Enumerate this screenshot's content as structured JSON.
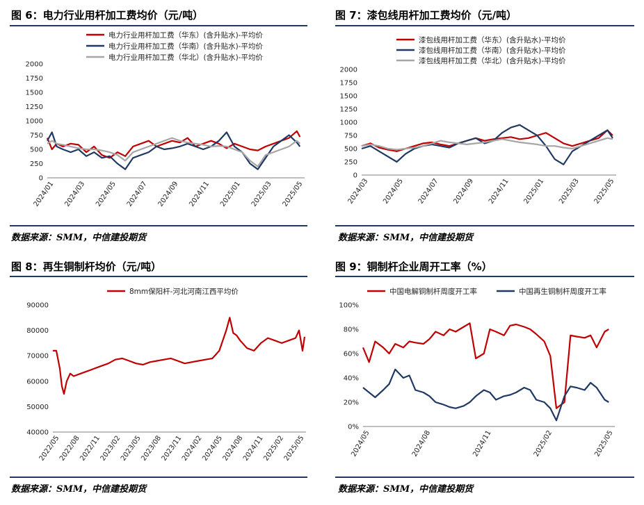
{
  "colors": {
    "red": "#c00000",
    "navy": "#1f3864",
    "gray": "#a6a6a6",
    "rule": "#1f3864"
  },
  "panels": [
    {
      "title": "图 6：电力行业用杆加工费均价（元/吨）",
      "source": "数据来源：SMM，中信建投期货",
      "chart_data": {
        "type": "line",
        "ylim": [
          0,
          2000
        ],
        "yticks": [
          "0",
          "250",
          "500",
          "750",
          "1000",
          "1250",
          "1500",
          "1750",
          "2000"
        ],
        "xlim": [
          0,
          16.5
        ],
        "xticks": [
          "2024/01",
          "2024/03",
          "2024/05",
          "2024/07",
          "2024/09",
          "2024/11",
          "2025/01",
          "2025/03",
          "2025/05"
        ],
        "legend_position": "top",
        "series": [
          {
            "name": "电力行业用杆加工费（华东）(含升贴水)-平均价",
            "color": "red",
            "x": [
              0,
              0.3,
              0.6,
              1,
              1.5,
              2,
              2.5,
              3,
              3.5,
              4,
              4.5,
              5,
              5.5,
              6,
              6.5,
              7,
              7.5,
              8,
              8.5,
              9,
              9.5,
              10,
              10.5,
              11,
              11.5,
              12,
              12.5,
              13,
              13.5,
              14,
              14.5,
              15,
              15.5,
              16,
              16.2
            ],
            "values": [
              700,
              500,
              600,
              550,
              600,
              580,
              450,
              550,
              400,
              350,
              450,
              380,
              550,
              600,
              650,
              550,
              600,
              650,
              620,
              700,
              550,
              600,
              650,
              600,
              520,
              600,
              550,
              500,
              480,
              550,
              600,
              650,
              700,
              820,
              720
            ]
          },
          {
            "name": "电力行业用杆加工费（华南）(含升贴水)-平均价",
            "color": "navy",
            "x": [
              0,
              0.3,
              0.6,
              1,
              1.5,
              2,
              2.5,
              3,
              3.5,
              4,
              4.5,
              5,
              5.5,
              6,
              6.5,
              7,
              7.5,
              8,
              8.5,
              9,
              9.5,
              10,
              10.5,
              11,
              11.5,
              12,
              12.5,
              13,
              13.5,
              14,
              14.5,
              15,
              15.5,
              16,
              16.2
            ],
            "values": [
              650,
              800,
              550,
              500,
              450,
              500,
              380,
              450,
              350,
              380,
              250,
              150,
              350,
              400,
              450,
              550,
              500,
              520,
              550,
              600,
              550,
              500,
              550,
              650,
              800,
              550,
              450,
              250,
              150,
              350,
              550,
              650,
              750,
              620,
              550
            ]
          },
          {
            "name": "电力行业用杆加工费（华北）(含升贴水)-平均价",
            "color": "gray",
            "x": [
              0,
              0.3,
              0.6,
              1,
              1.5,
              2,
              2.5,
              3,
              3.5,
              4,
              4.5,
              5,
              5.5,
              6,
              6.5,
              7,
              7.5,
              8,
              8.5,
              9,
              9.5,
              10,
              10.5,
              11,
              11.5,
              12,
              12.5,
              13,
              13.5,
              14,
              14.5,
              15,
              15.5,
              16,
              16.2
            ],
            "values": [
              600,
              650,
              600,
              580,
              550,
              520,
              500,
              500,
              480,
              450,
              400,
              300,
              450,
              500,
              550,
              600,
              650,
              700,
              650,
              620,
              600,
              580,
              550,
              560,
              550,
              500,
              450,
              300,
              200,
              400,
              450,
              500,
              550,
              650,
              600
            ]
          }
        ]
      }
    },
    {
      "title": "图 7：漆包线用杆加工费均价（元/吨）",
      "source": "数据来源：SMM，中信建投期货",
      "chart_data": {
        "type": "line",
        "ylim": [
          0,
          2000
        ],
        "yticks": [
          "0",
          "250",
          "500",
          "750",
          "1000",
          "1250",
          "1500",
          "1750",
          "2000"
        ],
        "xlim": [
          0,
          14.5
        ],
        "xticks": [
          "2024/03",
          "2024/05",
          "2024/07",
          "2024/09",
          "2024/11",
          "2025/01",
          "2025/03",
          "2025/05"
        ],
        "legend_position": "top",
        "series": [
          {
            "name": "漆包线用杆加工费（华东）(含升贴水)-平均价",
            "color": "red",
            "x": [
              0,
              0.5,
              1,
              1.5,
              2,
              2.5,
              3,
              3.5,
              4,
              4.5,
              5,
              5.5,
              6,
              6.5,
              7,
              7.5,
              8,
              8.5,
              9,
              9.5,
              10,
              10.5,
              11,
              11.5,
              12,
              12.5,
              13,
              13.5,
              14,
              14.3
            ],
            "values": [
              550,
              600,
              520,
              480,
              450,
              500,
              550,
              600,
              620,
              580,
              550,
              600,
              650,
              700,
              650,
              680,
              700,
              720,
              680,
              700,
              750,
              800,
              700,
              600,
              550,
              600,
              650,
              700,
              850,
              750
            ]
          },
          {
            "name": "漆包线用杆加工费（华南）(含升贴水)-平均价",
            "color": "navy",
            "x": [
              0,
              0.5,
              1,
              1.5,
              2,
              2.5,
              3,
              3.5,
              4,
              4.5,
              5,
              5.5,
              6,
              6.5,
              7,
              7.5,
              8,
              8.5,
              9,
              9.5,
              10,
              10.5,
              11,
              11.5,
              12,
              12.5,
              13,
              13.5,
              14,
              14.3
            ],
            "values": [
              500,
              550,
              450,
              350,
              250,
              400,
              500,
              550,
              580,
              550,
              520,
              600,
              650,
              700,
              600,
              650,
              800,
              900,
              950,
              850,
              750,
              550,
              300,
              200,
              450,
              550,
              650,
              750,
              850,
              700
            ]
          },
          {
            "name": "漆包线用杆加工费（华北）(含升贴水)-平均价",
            "color": "gray",
            "x": [
              0,
              0.5,
              1,
              1.5,
              2,
              2.5,
              3,
              3.5,
              4,
              4.5,
              5,
              5.5,
              6,
              6.5,
              7,
              7.5,
              8,
              8.5,
              9,
              9.5,
              10,
              10.5,
              11,
              11.5,
              12,
              12.5,
              13,
              13.5,
              14,
              14.3
            ],
            "values": [
              550,
              580,
              550,
              500,
              480,
              500,
              520,
              550,
              600,
              650,
              620,
              600,
              580,
              600,
              620,
              650,
              680,
              650,
              620,
              600,
              580,
              550,
              550,
              520,
              500,
              550,
              600,
              650,
              700,
              680
            ]
          }
        ]
      }
    },
    {
      "title": "图 8：再生铜制杆均价（元/吨）",
      "source": "数据来源：SMM，中信建投期货",
      "chart_data": {
        "type": "line",
        "ylim": [
          40000,
          90000
        ],
        "yticks": [
          "40000",
          "50000",
          "60000",
          "70000",
          "80000",
          "90000"
        ],
        "xlim": [
          0,
          36.5
        ],
        "xticks": [
          "2022/05",
          "2022/08",
          "2022/11",
          "2023/02",
          "2023/05",
          "2023/08",
          "2023/11",
          "2024/02",
          "2024/05",
          "2024/08",
          "2024/11",
          "2025/02",
          "2025/05"
        ],
        "legend_position": "top",
        "series": [
          {
            "name": "8mm保阳杆-河北河南江西平均价",
            "color": "red",
            "x": [
              0,
              0.5,
              1,
              1.3,
              1.6,
              2,
              2.5,
              3,
              4,
              5,
              6,
              7,
              8,
              9,
              10,
              11,
              12,
              13,
              14,
              15,
              16,
              17,
              18,
              19,
              20,
              21,
              22,
              23,
              24,
              25,
              25.5,
              26,
              26.5,
              27,
              28,
              29,
              30,
              31,
              32,
              33,
              34,
              35,
              35.5,
              36,
              36.3
            ],
            "values": [
              72000,
              72000,
              65000,
              58000,
              55000,
              60000,
              63000,
              62000,
              63000,
              64000,
              65000,
              66000,
              67000,
              68500,
              69000,
              68000,
              67000,
              66500,
              67500,
              68000,
              68500,
              69000,
              68000,
              67000,
              67500,
              68000,
              68500,
              69000,
              72000,
              80000,
              85000,
              79000,
              78000,
              76000,
              73000,
              72000,
              75000,
              77000,
              76000,
              75000,
              76000,
              77000,
              80000,
              72000,
              77500
            ]
          }
        ]
      }
    },
    {
      "title": "图 9：铜制杆企业周开工率（%）",
      "source": "数据来源：SMM，中信建投期货",
      "chart_data": {
        "type": "line",
        "ylim": [
          0,
          100
        ],
        "yticks": [
          "0%",
          "20%",
          "40%",
          "60%",
          "80%",
          "100%"
        ],
        "xlim": [
          0,
          12.5
        ],
        "xticks": [
          "2024/05",
          "2024/08",
          "2024/11",
          "2025/02",
          "2025/05"
        ],
        "legend_position": "top",
        "series": [
          {
            "name": "中国电解铜制杆周度开工率",
            "color": "red",
            "x": [
              0,
              0.3,
              0.6,
              1,
              1.3,
              1.6,
              2,
              2.3,
              2.6,
              3,
              3.3,
              3.6,
              4,
              4.3,
              4.6,
              5,
              5.3,
              5.6,
              6,
              6.3,
              6.6,
              7,
              7.3,
              7.6,
              8,
              8.3,
              8.6,
              9,
              9.3,
              9.6,
              10,
              10.3,
              10.6,
              11,
              11.3,
              11.6,
              12,
              12.2
            ],
            "values": [
              65,
              53,
              70,
              65,
              60,
              68,
              65,
              70,
              69,
              68,
              72,
              78,
              75,
              80,
              78,
              82,
              85,
              56,
              60,
              80,
              78,
              75,
              83,
              84,
              82,
              80,
              76,
              70,
              58,
              15,
              20,
              75,
              74,
              73,
              75,
              65,
              78,
              80
            ]
          },
          {
            "name": "中国再生铜制杆周度开工率",
            "color": "navy",
            "x": [
              0,
              0.3,
              0.6,
              1,
              1.3,
              1.6,
              2,
              2.3,
              2.6,
              3,
              3.3,
              3.6,
              4,
              4.3,
              4.6,
              5,
              5.3,
              5.6,
              6,
              6.3,
              6.6,
              7,
              7.3,
              7.6,
              8,
              8.3,
              8.6,
              9,
              9.3,
              9.6,
              10,
              10.3,
              10.6,
              11,
              11.3,
              11.6,
              12,
              12.2
            ],
            "values": [
              32,
              28,
              24,
              30,
              35,
              47,
              40,
              42,
              30,
              28,
              25,
              20,
              18,
              16,
              15,
              17,
              20,
              25,
              30,
              28,
              22,
              25,
              26,
              28,
              32,
              30,
              22,
              20,
              15,
              5,
              25,
              33,
              32,
              30,
              36,
              32,
              22,
              20
            ]
          }
        ]
      }
    }
  ]
}
